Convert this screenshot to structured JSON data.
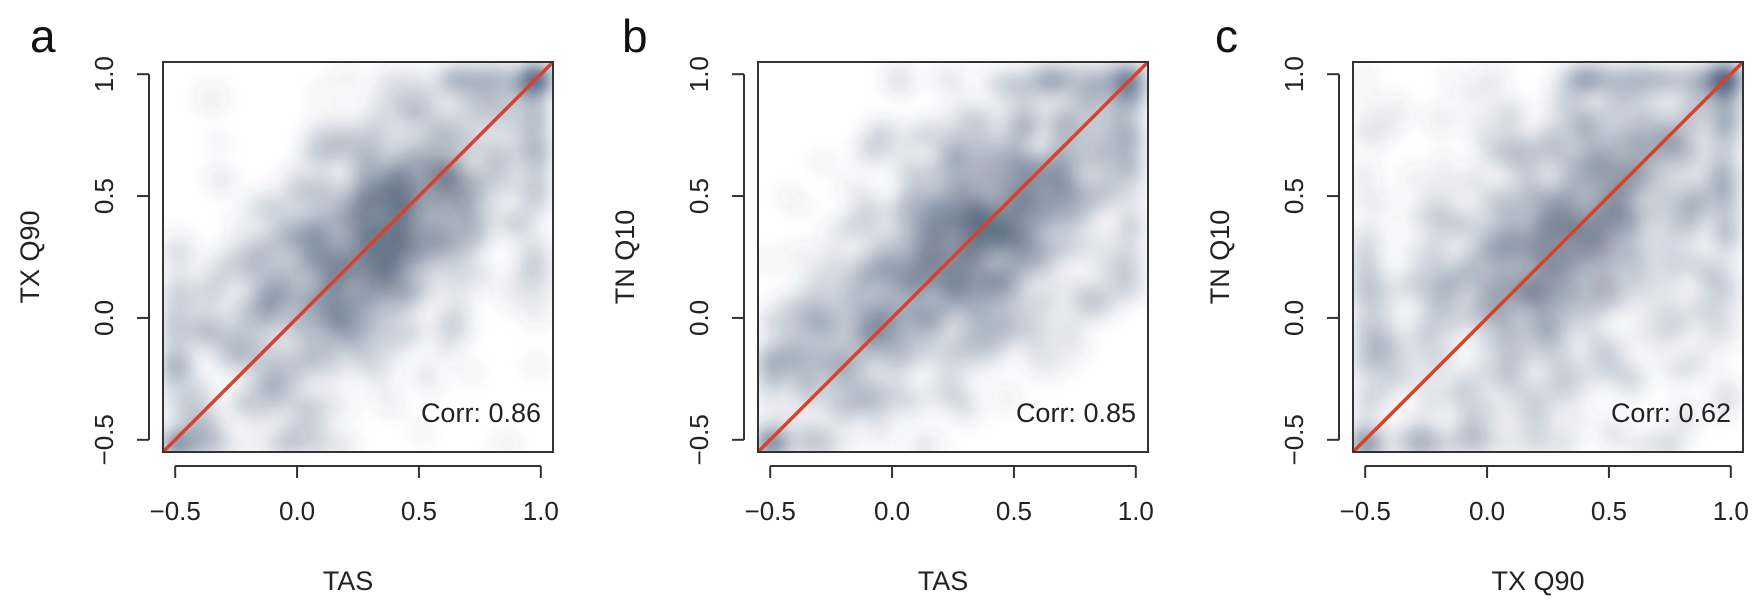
{
  "chart_data": [
    {
      "type": "scatter",
      "panel": "a",
      "xlabel": "TAS",
      "ylabel": "TX Q90",
      "xlim": [
        -0.55,
        1.05
      ],
      "ylim": [
        -0.55,
        1.05
      ],
      "xticks": [
        -0.5,
        0.0,
        0.5,
        1.0
      ],
      "yticks": [
        -0.5,
        0.0,
        0.5,
        1.0
      ],
      "xtick_labels": [
        "−0.5",
        "0.0",
        "0.5",
        "1.0"
      ],
      "ytick_labels": [
        "−0.5",
        "0.0",
        "0.5",
        "1.0"
      ],
      "annotation": "Corr: 0.86",
      "correlation": 0.86,
      "reference_line": "y = x",
      "reference_line_color": "#d9412b",
      "density_color": "#2b4a68",
      "grid": false
    },
    {
      "type": "scatter",
      "panel": "b",
      "xlabel": "TAS",
      "ylabel": "TN Q10",
      "xlim": [
        -0.55,
        1.05
      ],
      "ylim": [
        -0.55,
        1.05
      ],
      "xticks": [
        -0.5,
        0.0,
        0.5,
        1.0
      ],
      "yticks": [
        -0.5,
        0.0,
        0.5,
        1.0
      ],
      "xtick_labels": [
        "−0.5",
        "0.0",
        "0.5",
        "1.0"
      ],
      "ytick_labels": [
        "−0.5",
        "0.0",
        "0.5",
        "1.0"
      ],
      "annotation": "Corr: 0.85",
      "correlation": 0.85,
      "reference_line": "y = x",
      "reference_line_color": "#d9412b",
      "density_color": "#2b4a68",
      "grid": false
    },
    {
      "type": "scatter",
      "panel": "c",
      "xlabel": "TX Q90",
      "ylabel": "TN Q10",
      "xlim": [
        -0.55,
        1.05
      ],
      "ylim": [
        -0.55,
        1.05
      ],
      "xticks": [
        -0.5,
        0.0,
        0.5,
        1.0
      ],
      "yticks": [
        -0.5,
        0.0,
        0.5,
        1.0
      ],
      "xtick_labels": [
        "−0.5",
        "0.0",
        "0.5",
        "1.0"
      ],
      "ytick_labels": [
        "−0.5",
        "0.0",
        "0.5",
        "1.0"
      ],
      "annotation": "Corr: 0.62",
      "correlation": 0.62,
      "reference_line": "y = x",
      "reference_line_color": "#d9412b",
      "density_color": "#2b4a68",
      "grid": false
    }
  ]
}
